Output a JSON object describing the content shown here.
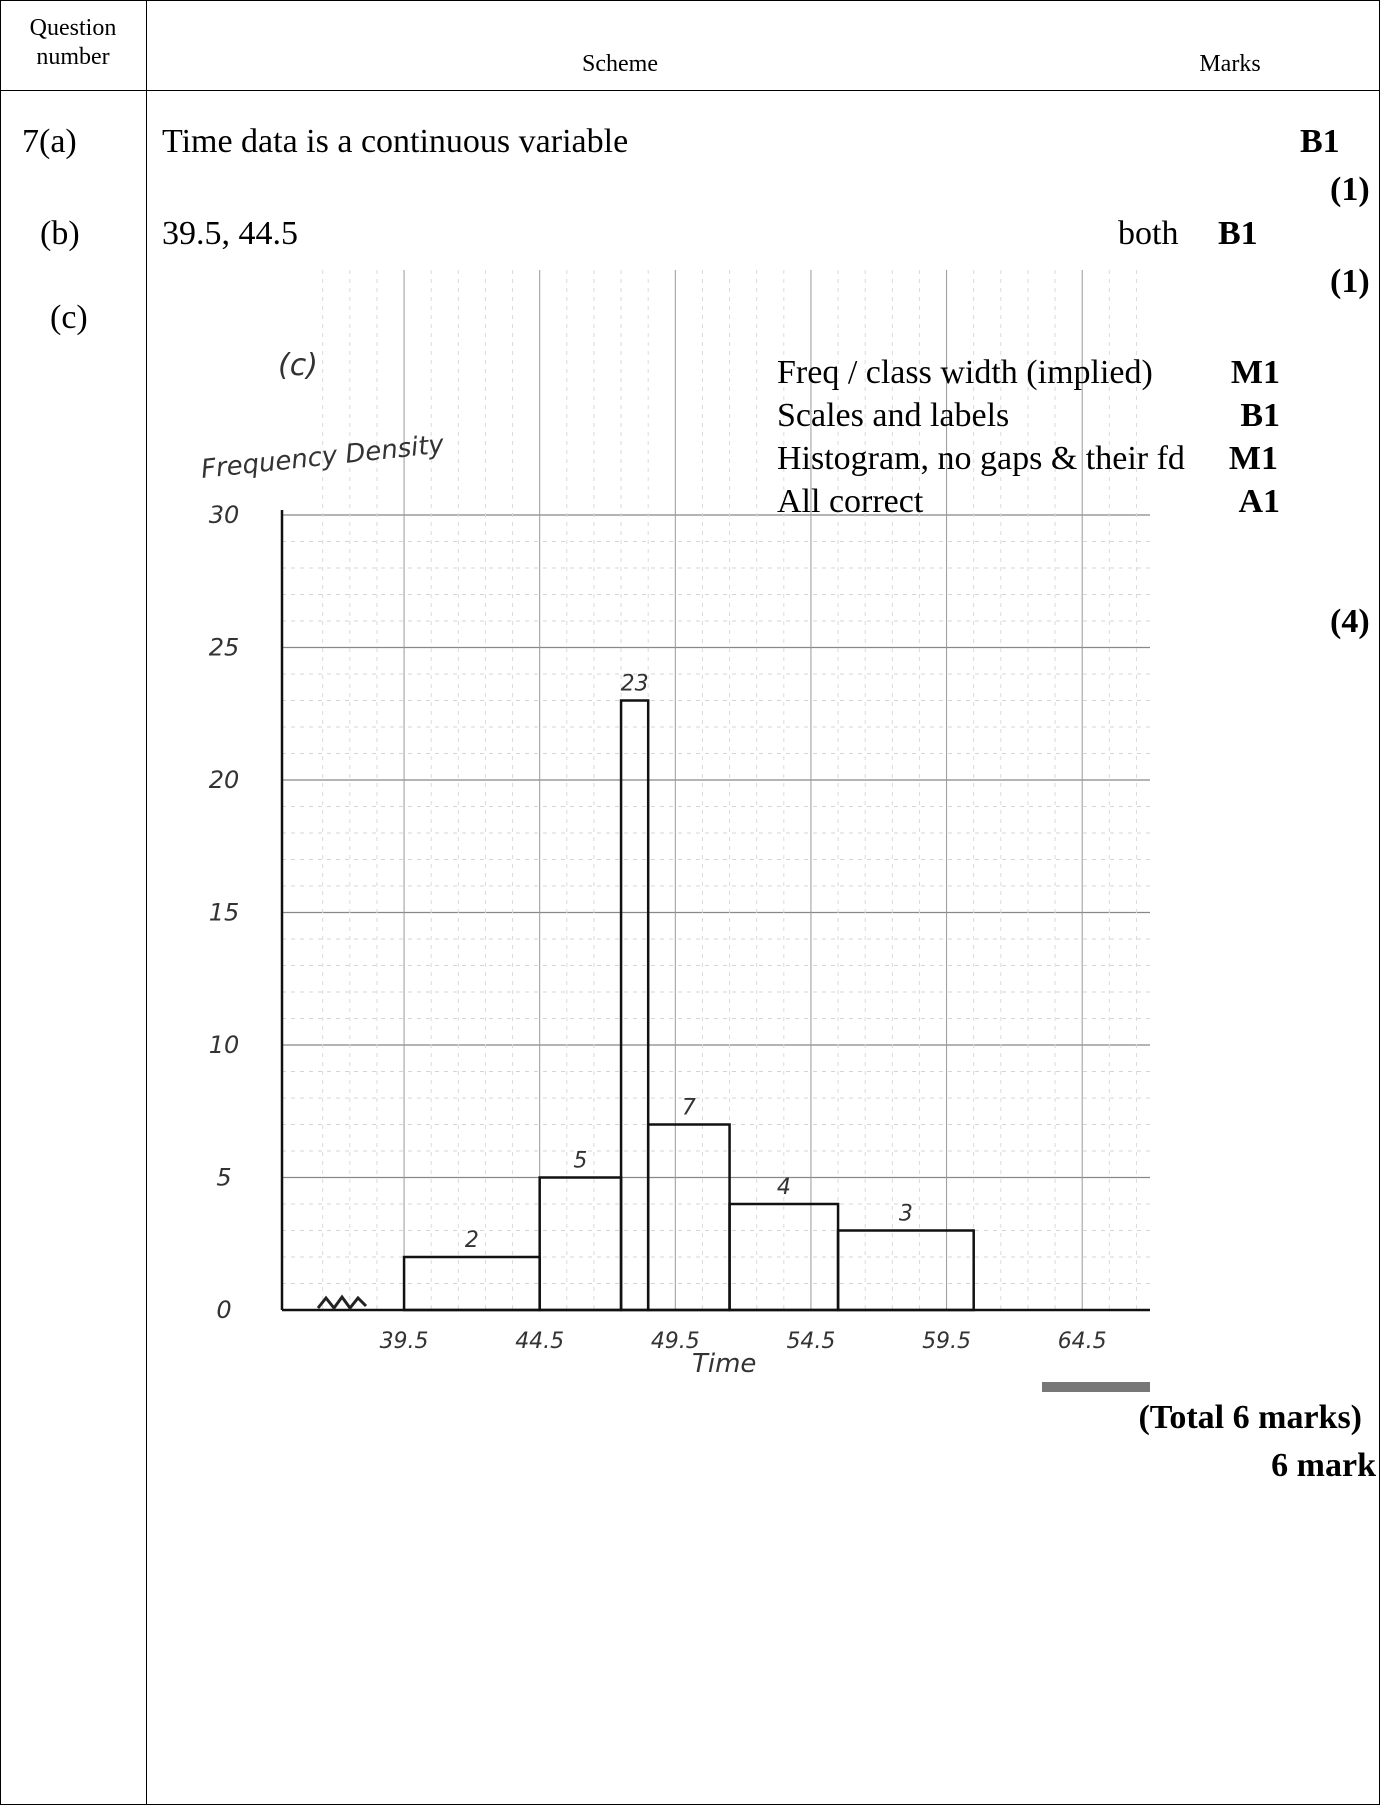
{
  "header": {
    "question_number": "Question\nnumber",
    "scheme": "Scheme",
    "marks": "Marks"
  },
  "rows": [
    {
      "label": "7(a)",
      "text": "Time data is a continuous variable",
      "mark": "B1",
      "subtotal": "(1)"
    },
    {
      "label": "(b)",
      "text": "39.5, 44.5",
      "qualifier": "both",
      "mark": "B1",
      "subtotal": "(1)"
    },
    {
      "label": "(c)",
      "subtotal": "(4)"
    }
  ],
  "criteria": [
    {
      "text": "Freq / class width  (implied)",
      "mark": "M1"
    },
    {
      "text": "Scales and labels",
      "mark": "B1"
    },
    {
      "text": "Histogram, no gaps & their fd",
      "mark": "M1"
    },
    {
      "text": "All correct",
      "mark": "A1"
    }
  ],
  "chart_data": {
    "type": "bar",
    "title": "(c)",
    "ylabel": "Frequency Density",
    "xlabel": "Time",
    "ylim": [
      0,
      30
    ],
    "xlim": [
      35,
      67
    ],
    "y_ticks": [
      "0",
      "5",
      "10",
      "15",
      "20",
      "25",
      "30"
    ],
    "x_ticks": [
      "39.5",
      "44.5",
      "49.5",
      "54.5",
      "59.5",
      "64.5"
    ],
    "bars": [
      {
        "x0": 39.5,
        "x1": 44.5,
        "value": 2,
        "label": "2"
      },
      {
        "x0": 44.5,
        "x1": 47.5,
        "value": 5,
        "label": "5"
      },
      {
        "x0": 47.5,
        "x1": 48.5,
        "value": 23,
        "label": "23"
      },
      {
        "x0": 48.5,
        "x1": 51.5,
        "value": 7,
        "label": "7"
      },
      {
        "x0": 51.5,
        "x1": 55.5,
        "value": 4,
        "label": "4"
      },
      {
        "x0": 55.5,
        "x1": 60.5,
        "value": 3,
        "label": "3"
      }
    ]
  },
  "totals": {
    "total": "(Total 6 marks)",
    "final": "6 mark"
  }
}
